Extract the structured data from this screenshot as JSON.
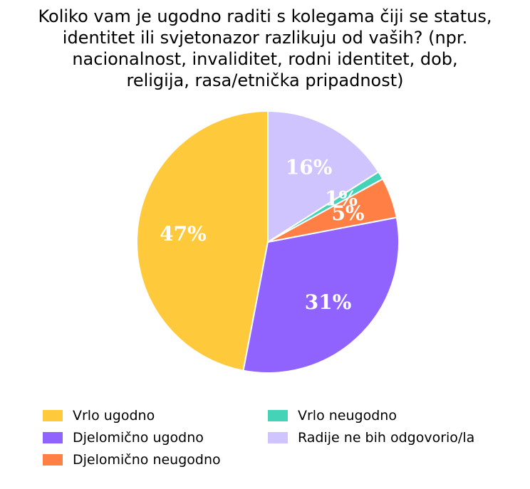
{
  "chart_data": {
    "type": "pie",
    "title": "Koliko vam je ugodno raditi s kolegama čiji se status,\nidentitet ili svjetonazor razlikuju od vaših? (npr.\nnacionalnost, invaliditet, rodni identitet, dob,\nreligija, rasa/etnička pripadnost)",
    "slices": [
      {
        "label": "Vrlo ugodno",
        "value": 47,
        "display": "47%",
        "color": "#FFC93C"
      },
      {
        "label": "Djelomično ugodno",
        "value": 31,
        "display": "31%",
        "color": "#9063FF"
      },
      {
        "label": "Djelomično neugodno",
        "value": 5,
        "display": "5%",
        "color": "#FF7F45"
      },
      {
        "label": "Vrlo neugodno",
        "value": 1,
        "display": "1%",
        "color": "#44D3B7"
      },
      {
        "label": "Radije ne bih odgovorio/la",
        "value": 16,
        "display": "16%",
        "color": "#D0C4FF"
      }
    ],
    "legend_position": "bottom",
    "legend_order": [
      0,
      1,
      2,
      3,
      4
    ]
  }
}
